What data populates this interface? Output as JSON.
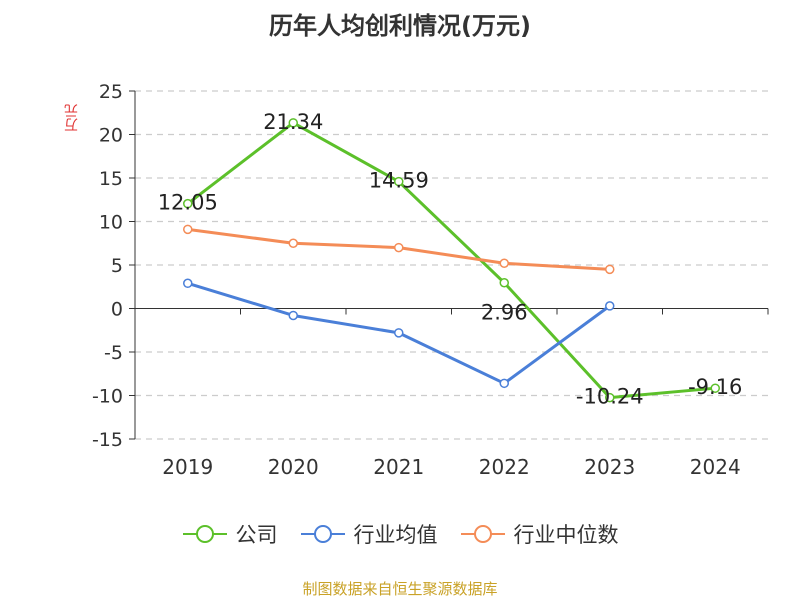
{
  "chart_data": {
    "type": "line",
    "title": "历年人均创利情况(万元)",
    "ylabel": "万元",
    "categories": [
      "2019",
      "2020",
      "2021",
      "2022",
      "2023",
      "2024"
    ],
    "ylim": [
      -15,
      25
    ],
    "yticks": [
      25,
      20,
      15,
      10,
      5,
      0,
      -5,
      -10,
      -15
    ],
    "grid": true,
    "legend_position": "bottom",
    "series": [
      {
        "name": "公司",
        "color": "#5cc02a",
        "values": [
          12.05,
          21.34,
          14.59,
          2.96,
          -10.24,
          -9.16
        ],
        "labels": [
          "12.05",
          "21.34",
          "14.59",
          "2.96",
          "-10.24",
          "-9.16"
        ]
      },
      {
        "name": "行业均值",
        "color": "#4a7fd8",
        "values": [
          2.9,
          -0.8,
          -2.8,
          -8.6,
          0.3,
          null
        ]
      },
      {
        "name": "行业中位数",
        "color": "#f48c57",
        "values": [
          9.1,
          7.5,
          7.0,
          5.2,
          4.5,
          null
        ]
      }
    ]
  },
  "footer": {
    "source": "制图数据来自恒生聚源数据库"
  }
}
